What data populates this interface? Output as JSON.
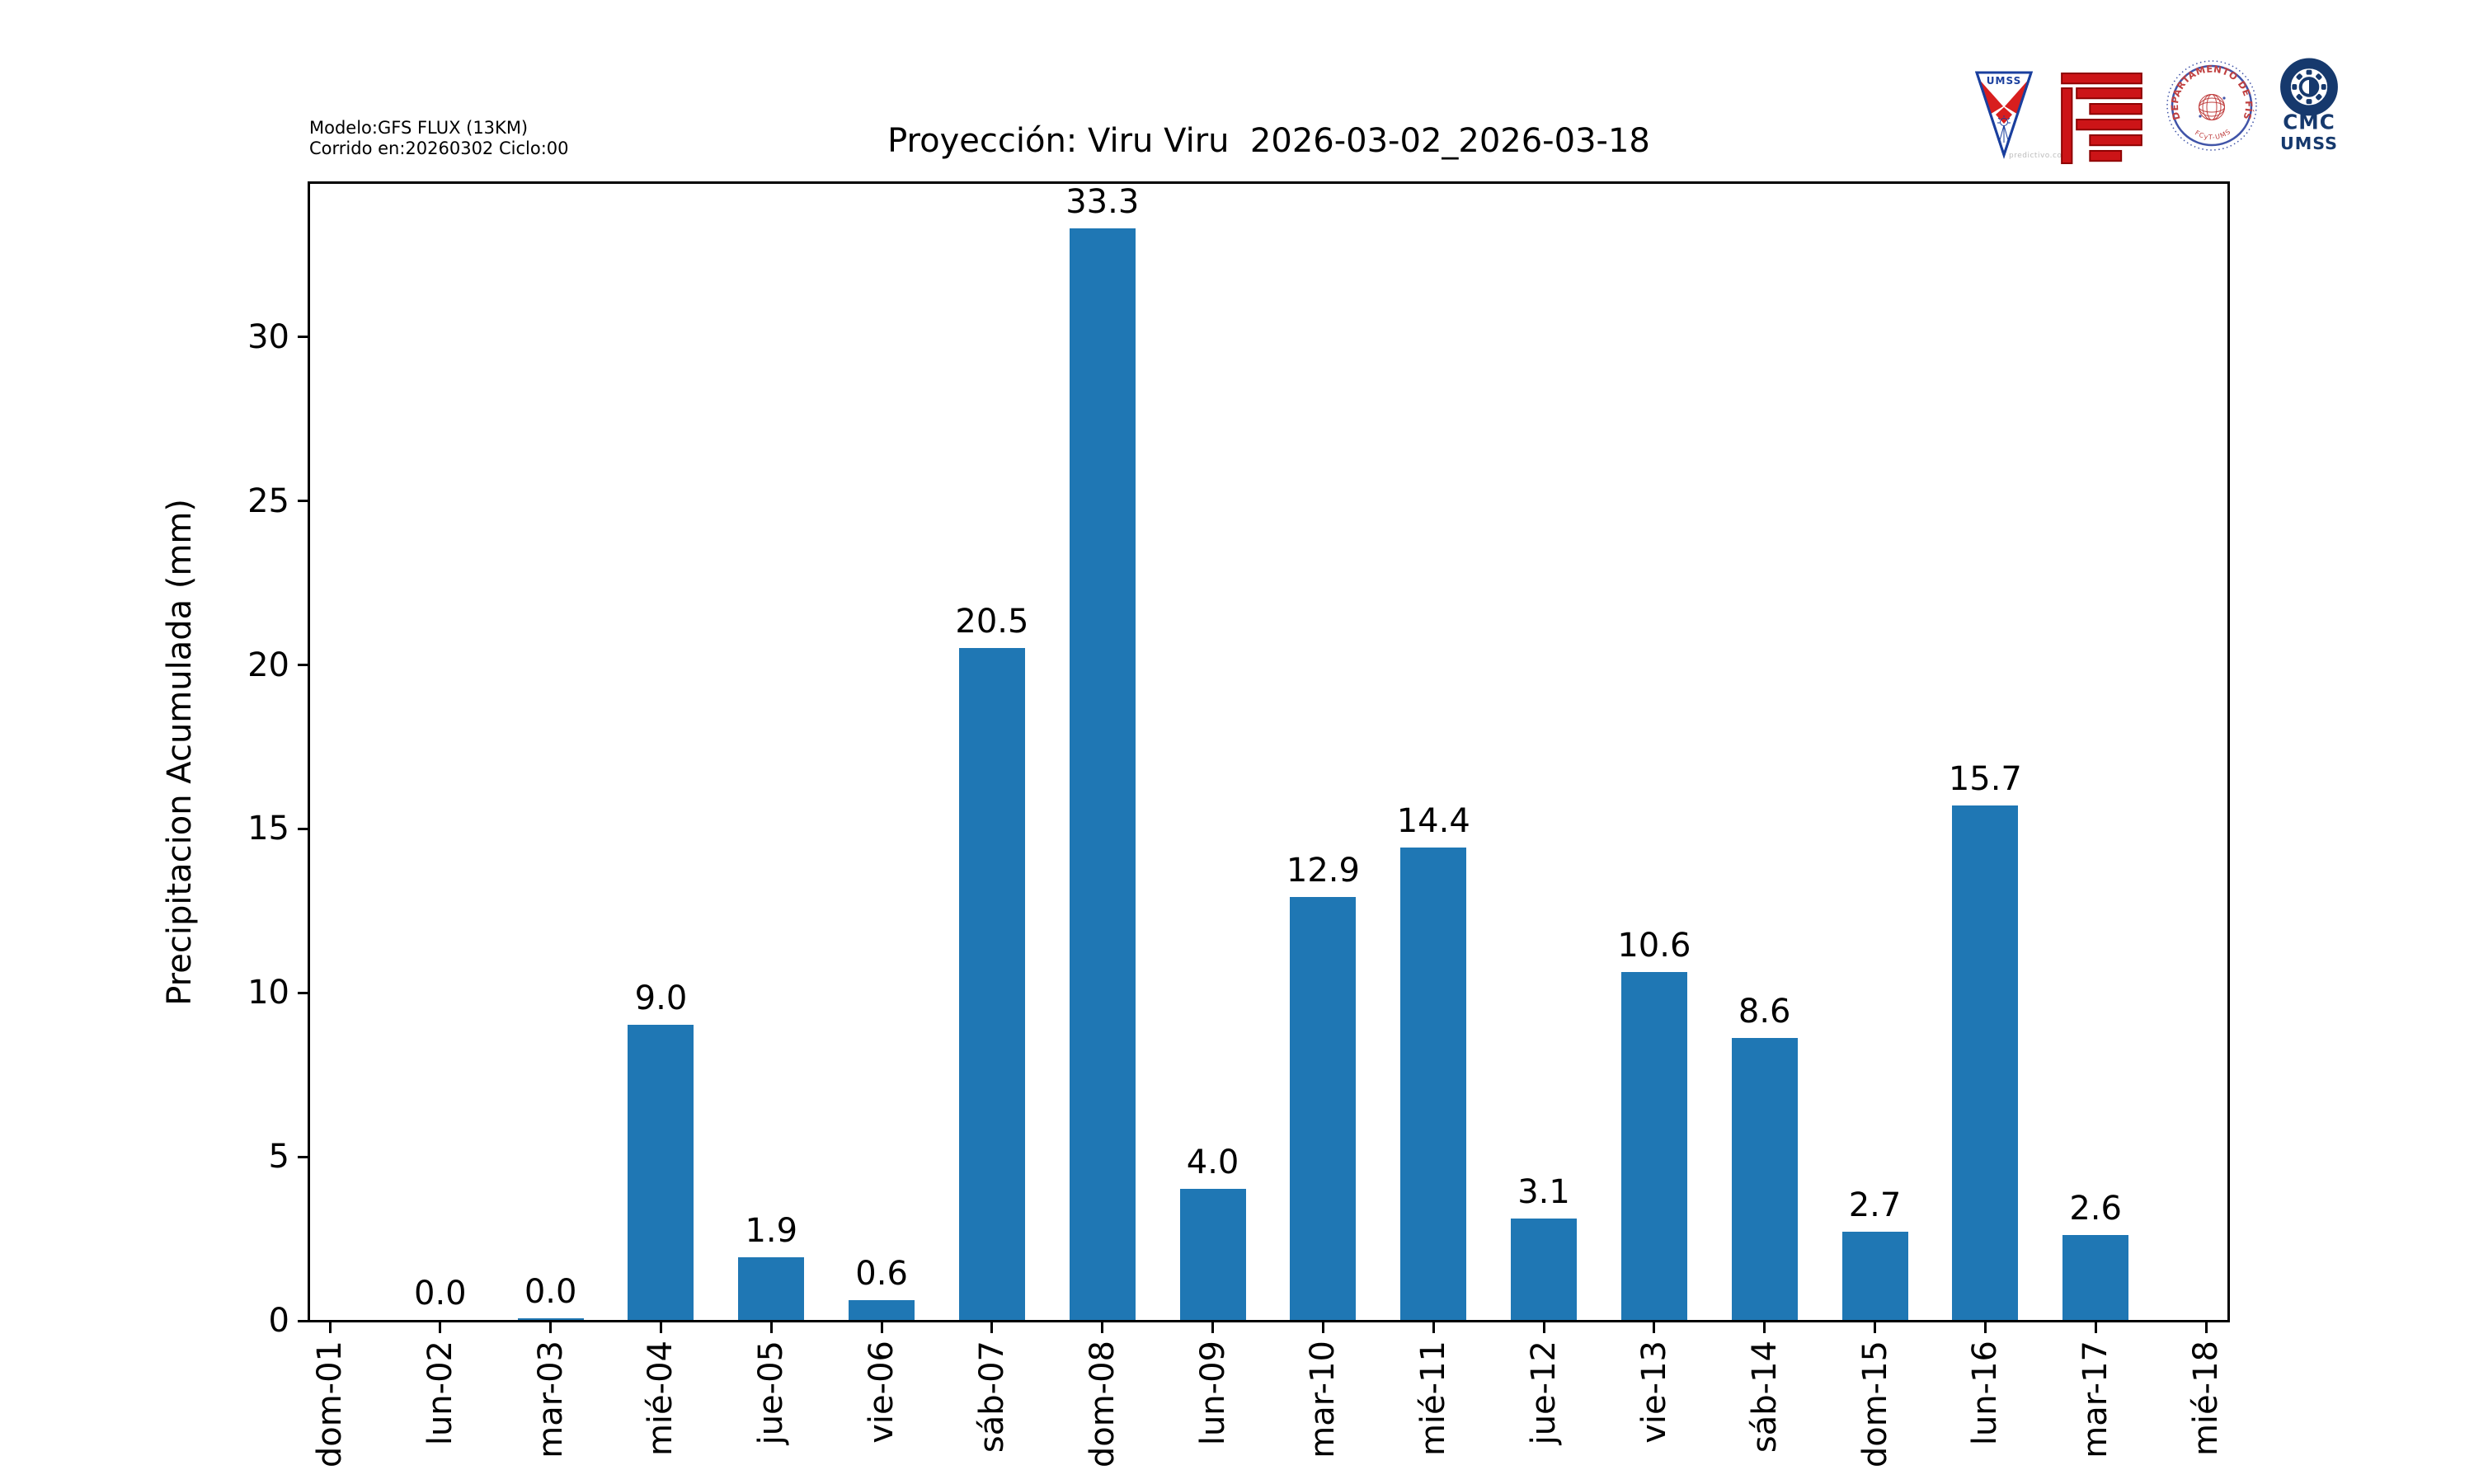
{
  "annotations": {
    "model_line1": "Modelo:GFS FLUX (13KM)",
    "model_line2": "Corrido en:20260302 Ciclo:00",
    "watermark": "predictivo.com"
  },
  "header": {
    "title": "Proyección: Viru Viru  2026-03-02_2026-03-18"
  },
  "chart_data": {
    "type": "bar",
    "title": "Proyección: Viru Viru  2026-03-02_2026-03-18",
    "xlabel": "",
    "ylabel": "Precipitacion Acumulada (mm)",
    "categories": [
      "dom-01",
      "lun-02",
      "mar-03",
      "mié-04",
      "jue-05",
      "vie-06",
      "sáb-07",
      "dom-08",
      "lun-09",
      "mar-10",
      "mié-11",
      "jue-12",
      "vie-13",
      "sáb-14",
      "dom-15",
      "lun-16",
      "mar-17",
      "mié-18"
    ],
    "values": [
      null,
      0.0,
      0.05,
      9.0,
      1.9,
      0.6,
      20.5,
      33.3,
      4.0,
      12.9,
      14.4,
      3.1,
      10.6,
      8.6,
      2.7,
      15.7,
      2.6,
      null
    ],
    "bar_labels": [
      null,
      "0.0",
      "0.0",
      "9.0",
      "1.9",
      "0.6",
      "20.5",
      "33.3",
      "4.0",
      "12.9",
      "14.4",
      "3.1",
      "10.6",
      "8.6",
      "2.7",
      "15.7",
      "2.6",
      null
    ],
    "yticks": [
      0,
      5,
      10,
      15,
      20,
      25,
      30
    ],
    "ylim": [
      0,
      34.7
    ],
    "grid": false,
    "legend_position": "none",
    "bar_color": "#1f77b4",
    "axis_color": "#000000"
  },
  "logos": {
    "umss_pennant": {
      "text": "UMSS",
      "blue": "#1a3f9e",
      "red": "#d81e1e"
    },
    "fcyt_maze": {
      "fill": "#cc1417",
      "stroke": "#8b0000"
    },
    "fisica_seal": {
      "ring_text": "DEPARTAMENTO DE FÍSICA",
      "sub_text": "FCyT-UMSS",
      "blue": "#4054a8",
      "red": "#c04040"
    },
    "cmc": {
      "line1": "CMC",
      "line2": "UMSS",
      "navy": "#16396d"
    }
  }
}
